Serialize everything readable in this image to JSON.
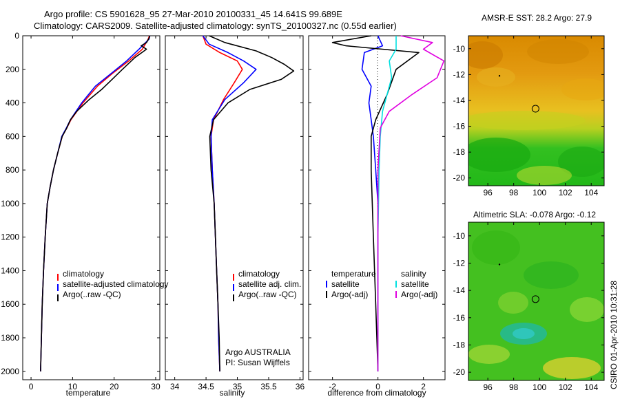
{
  "title_line1": "Argo profile: CS 5901628_95 27-Mar-2010 20100331_45 14.641S 99.689E",
  "title_line2": "Climatology: CARS2009. Satellite-adjusted climatology: synTS_20100327.nc (0.55d earlier)",
  "credit": "CSIRO 01-Apr-2010 10:31:28",
  "colors": {
    "climatology": "#ff0000",
    "satellite": "#0000ff",
    "argo": "#000000",
    "salinity_sat": "#00e0e0",
    "salinity_argo": "#e000e0"
  },
  "chart_data": [
    {
      "type": "line",
      "xlabel": "temperature",
      "xlim": [
        -2,
        31
      ],
      "ylim": [
        2050,
        0
      ],
      "xticks": [
        0,
        10,
        20,
        30
      ],
      "yticks": [
        0,
        200,
        400,
        600,
        800,
        1000,
        1200,
        1400,
        1600,
        1800,
        2000
      ],
      "legend": [
        "climatology",
        "satellite-adjusted climatology",
        "Argo(..raw -QC)"
      ],
      "series": [
        {
          "name": "climatology",
          "color": "#ff0000",
          "x": [
            28.5,
            28.2,
            26.8,
            23.5,
            19.8,
            16.0,
            12.5,
            9.6,
            8.6,
            7.5,
            6.4,
            5.4,
            4.6,
            3.9,
            3.4,
            3.0,
            2.7,
            2.5,
            2.3
          ],
          "y": [
            0,
            20,
            80,
            150,
            220,
            300,
            400,
            500,
            550,
            600,
            700,
            800,
            900,
            1000,
            1200,
            1400,
            1600,
            1800,
            2000
          ]
        },
        {
          "name": "satellite-adjusted climatology",
          "color": "#0000ff",
          "x": [
            28.6,
            28.4,
            26.0,
            23.0,
            19.5,
            15.5,
            12.2,
            9.5,
            8.5,
            7.4,
            6.4,
            5.4,
            4.6,
            3.9,
            3.4,
            3.0,
            2.7,
            2.5,
            2.3
          ],
          "y": [
            0,
            20,
            80,
            150,
            220,
            300,
            400,
            500,
            550,
            600,
            700,
            800,
            900,
            1000,
            1200,
            1400,
            1600,
            1800,
            2000
          ]
        },
        {
          "name": "Argo(..raw -QC)",
          "color": "#000000",
          "x": [
            28.6,
            28.4,
            27.8,
            26.5,
            27.8,
            25.0,
            22.0,
            19.5,
            17.0,
            14.0,
            11.0,
            9.5,
            8.6,
            7.5,
            6.4,
            5.4,
            4.6,
            3.9,
            3.4,
            3.0,
            2.7,
            2.5,
            2.3
          ],
          "y": [
            0,
            15,
            40,
            60,
            80,
            130,
            200,
            260,
            320,
            380,
            450,
            500,
            550,
            600,
            700,
            800,
            900,
            1000,
            1200,
            1400,
            1600,
            1800,
            2000
          ]
        }
      ]
    },
    {
      "type": "line",
      "xlabel": "salinity",
      "xlim": [
        33.85,
        36.05
      ],
      "ylim": [
        2050,
        0
      ],
      "xticks": [
        34,
        34.5,
        35,
        35.5,
        36
      ],
      "legend": [
        "climatology",
        "satellite adj. clim.",
        "Argo(..raw -QC)"
      ],
      "annotation": [
        "Argo AUSTRALIA",
        "PI: Susan Wijffels"
      ],
      "series": [
        {
          "name": "climatology",
          "color": "#ff0000",
          "x": [
            34.45,
            34.5,
            34.72,
            35.0,
            35.08,
            34.95,
            34.78,
            34.62,
            34.58,
            34.6,
            34.63,
            34.65,
            34.67,
            34.69,
            34.7,
            34.72
          ],
          "y": [
            0,
            50,
            100,
            150,
            200,
            280,
            380,
            500,
            600,
            800,
            1000,
            1200,
            1400,
            1600,
            1800,
            2000
          ]
        },
        {
          "name": "satellite adj. clim.",
          "color": "#0000ff",
          "x": [
            34.45,
            34.55,
            34.85,
            35.1,
            35.3,
            35.1,
            34.8,
            34.6,
            34.58,
            34.6,
            34.63,
            34.65,
            34.67,
            34.69,
            34.7,
            34.72
          ],
          "y": [
            0,
            50,
            100,
            150,
            200,
            280,
            380,
            500,
            600,
            800,
            1000,
            1200,
            1400,
            1600,
            1800,
            2000
          ]
        },
        {
          "name": "Argo(..raw -QC)",
          "color": "#000000",
          "x": [
            34.55,
            34.8,
            35.3,
            35.55,
            35.75,
            35.9,
            35.7,
            35.2,
            34.85,
            34.62,
            34.56,
            34.58,
            34.63,
            34.65,
            34.67,
            34.69,
            34.71,
            34.72
          ],
          "y": [
            0,
            40,
            90,
            130,
            170,
            210,
            260,
            320,
            400,
            500,
            600,
            800,
            1000,
            1200,
            1400,
            1600,
            1800,
            2000
          ]
        }
      ]
    },
    {
      "type": "line",
      "xlabel": "difference from climatology",
      "xlim": [
        -3.05,
        2.95
      ],
      "ylim": [
        2050,
        0
      ],
      "xticks": [
        -2,
        0,
        2
      ],
      "legend_temperature": {
        "heading": "temperature",
        "items": [
          "satellite",
          "Argo(-adj)"
        ]
      },
      "legend_salinity": {
        "heading": "salinity",
        "items": [
          "satellite",
          "Argo(-adj)"
        ]
      },
      "series": [
        {
          "name": "temperature satellite",
          "color": "#0000ff",
          "x": [
            0.0,
            0.2,
            -0.6,
            -0.7,
            -0.3,
            -0.4,
            -0.3,
            -0.2,
            -0.1,
            0.0,
            0.0,
            0.0,
            0.0,
            0.0
          ],
          "y": [
            0,
            60,
            100,
            200,
            300,
            400,
            500,
            600,
            800,
            1000,
            1200,
            1400,
            1600,
            2000
          ]
        },
        {
          "name": "temperature Argo(-adj)",
          "color": "#000000",
          "x": [
            -0.3,
            -2.0,
            -1.4,
            1.8,
            0.8,
            0.4,
            -0.1,
            -0.3,
            -0.3,
            -0.25,
            -0.2,
            -0.15,
            -0.1,
            -0.05,
            0.0
          ],
          "y": [
            0,
            40,
            60,
            100,
            200,
            350,
            500,
            600,
            800,
            1000,
            1200,
            1400,
            1600,
            1800,
            2000
          ]
        },
        {
          "name": "salinity satellite",
          "color": "#00e0e0",
          "x": [
            0.8,
            0.8,
            0.5,
            0.6,
            0.4,
            0.2,
            0.1,
            0.05,
            0.0,
            0.0,
            0.0
          ],
          "y": [
            0,
            80,
            150,
            250,
            350,
            450,
            600,
            800,
            1200,
            1600,
            2000
          ]
        },
        {
          "name": "salinity Argo(-adj)",
          "color": "#e000e0",
          "x": [
            1.0,
            2.4,
            2.0,
            2.9,
            2.6,
            1.5,
            0.5,
            0.1,
            0.0,
            0.0,
            0.0
          ],
          "y": [
            0,
            40,
            80,
            150,
            250,
            350,
            450,
            550,
            800,
            1200,
            2000
          ]
        }
      ]
    },
    {
      "type": "heatmap",
      "title": "AMSR-E SST: 28.2  Argo: 27.9",
      "xlim": [
        94.5,
        105
      ],
      "ylim": [
        -20.6,
        -9.0
      ],
      "xticks": [
        96,
        98,
        100,
        102,
        104
      ],
      "yticks": [
        -10,
        -12,
        -14,
        -16,
        -18,
        -20
      ],
      "marker": {
        "lon": 99.689,
        "lat": -14.641
      }
    },
    {
      "type": "heatmap",
      "title": "Altimetric SLA: -0.078  Argo: -0.12",
      "xlim": [
        94.5,
        105
      ],
      "ylim": [
        -20.6,
        -9.0
      ],
      "xticks": [
        96,
        98,
        100,
        102,
        104
      ],
      "yticks": [
        -10,
        -12,
        -14,
        -16,
        -18,
        -20
      ],
      "marker": {
        "lon": 99.689,
        "lat": -14.641
      }
    }
  ]
}
